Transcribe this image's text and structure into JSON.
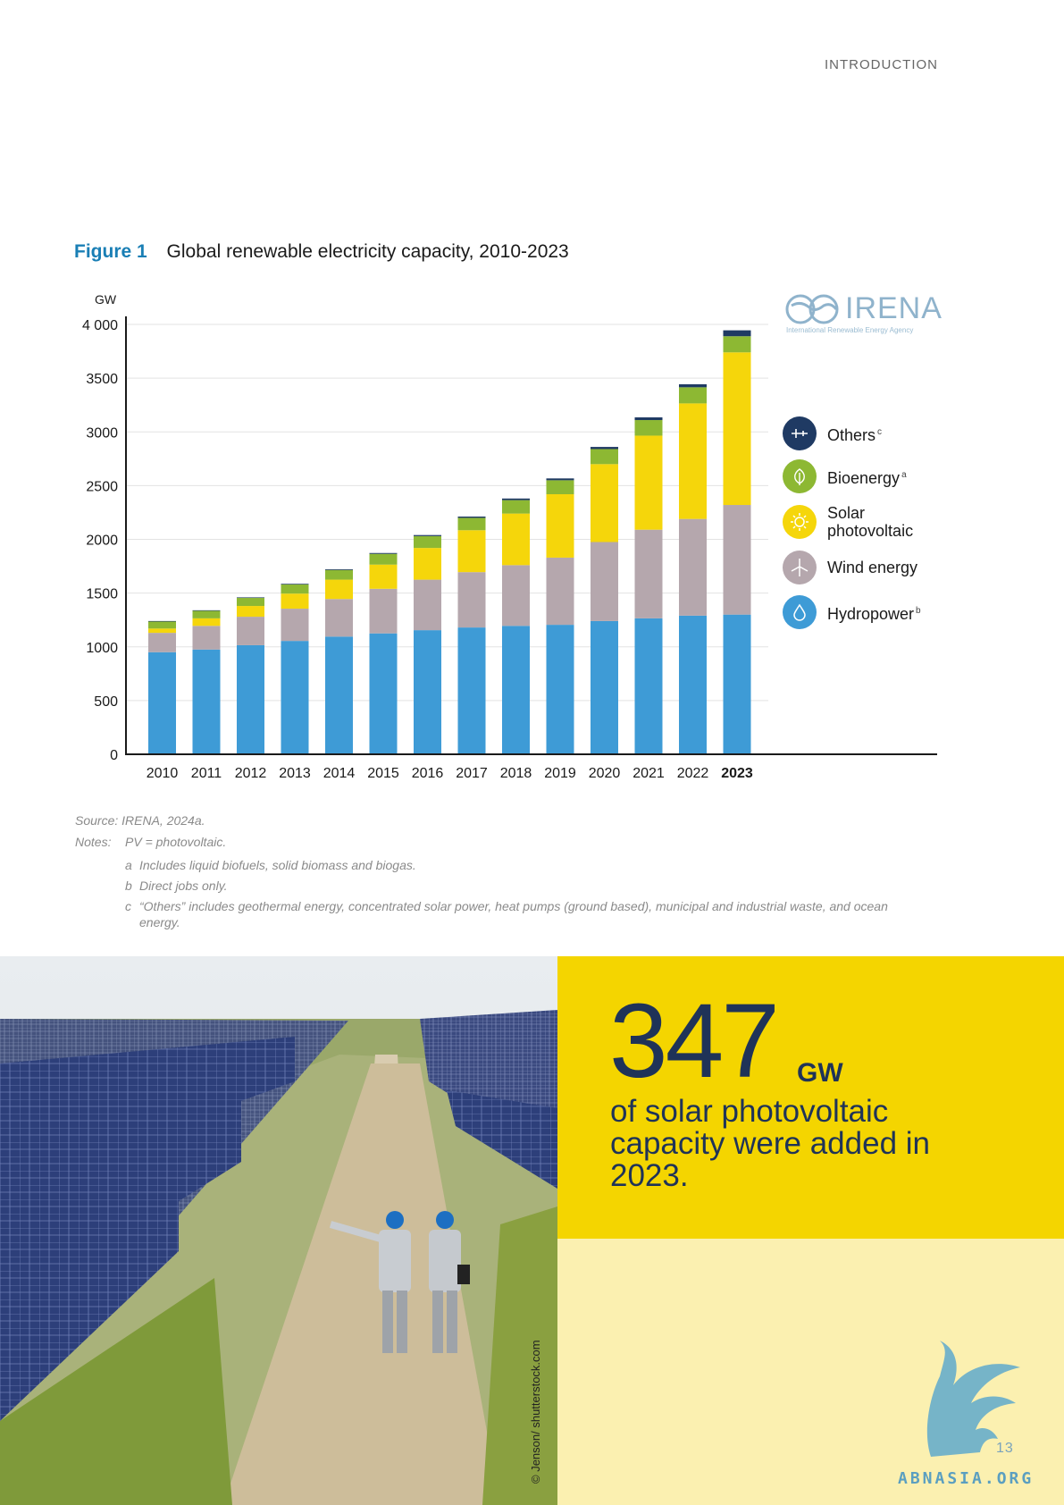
{
  "header": {
    "section": "INTRODUCTION"
  },
  "figure": {
    "number": "Figure 1",
    "title": "Global renewable electricity capacity, 2010-2023"
  },
  "logo": {
    "wordmark": "IRENA",
    "tagline": "International Renewable Energy Agency"
  },
  "chart_data": {
    "type": "bar",
    "stacked": true,
    "ylabel": "GW",
    "ylim": [
      0,
      4000
    ],
    "yticks": [
      0,
      500,
      1000,
      1500,
      2000,
      2500,
      3000,
      3500,
      4000
    ],
    "ytick_labels": [
      "0",
      "500",
      "1000",
      "1500",
      "2000",
      "2500",
      "3000",
      "3500",
      "4 000"
    ],
    "categories": [
      "2010",
      "2011",
      "2012",
      "2013",
      "2014",
      "2015",
      "2016",
      "2017",
      "2018",
      "2019",
      "2020",
      "2021",
      "2022",
      "2023"
    ],
    "highlight_category": "2023",
    "grid": true,
    "legend_position": "right",
    "series": [
      {
        "name": "Hydropower",
        "sup": "b",
        "color": "#3e9bd6",
        "icon": "water-drop-icon",
        "values": [
          950,
          975,
          1015,
          1055,
          1095,
          1125,
          1155,
          1180,
          1195,
          1205,
          1240,
          1265,
          1290,
          1300
        ]
      },
      {
        "name": "Wind energy",
        "sup": "",
        "color": "#b5a7ad",
        "icon": "wind-turbine-icon",
        "values": [
          180,
          220,
          265,
          300,
          350,
          415,
          470,
          515,
          565,
          625,
          735,
          825,
          900,
          1020
        ]
      },
      {
        "name": "Solar photovoltaic",
        "sup": "",
        "color": "#f5d60b",
        "icon": "sun-icon",
        "values": [
          40,
          70,
          100,
          140,
          180,
          225,
          295,
          390,
          480,
          590,
          725,
          875,
          1075,
          1420
        ]
      },
      {
        "name": "Bioenergy",
        "sup": "a",
        "color": "#8db833",
        "icon": "leaf-icon",
        "values": [
          65,
          70,
          75,
          85,
          90,
          100,
          110,
          115,
          125,
          130,
          140,
          145,
          150,
          150
        ]
      },
      {
        "name": "Others",
        "sup": "c",
        "color": "#1f3a63",
        "icon": "plus-minus-icon",
        "values": [
          5,
          5,
          5,
          6,
          7,
          8,
          10,
          12,
          15,
          17,
          20,
          25,
          28,
          55
        ]
      }
    ]
  },
  "notes": {
    "source": "Source: IRENA, 2024a.",
    "notes_label": "Notes:",
    "pv": "PV = photovoltaic.",
    "items": [
      {
        "key": "a",
        "text": "Includes liquid biofuels, solid biomass and biogas."
      },
      {
        "key": "b",
        "text": "Direct jobs only."
      },
      {
        "key": "c",
        "text": "“Others” includes geothermal energy, concentrated solar power, heat pumps (ground based), municipal and industrial waste, and ocean energy."
      }
    ]
  },
  "photo": {
    "credit": "© Jenson/ shutterstock.com"
  },
  "stat": {
    "number": "347",
    "unit": "GW",
    "text": "of solar photovoltaic capacity were added in 2023."
  },
  "page": {
    "number": "13"
  },
  "watermark": {
    "text": "ABNASIA.ORG"
  },
  "colors": {
    "accent_blue": "#1a7fb5",
    "stat_yellow": "#f4d500",
    "stat_light": "#fbf0b0",
    "navy": "#1f3358"
  }
}
